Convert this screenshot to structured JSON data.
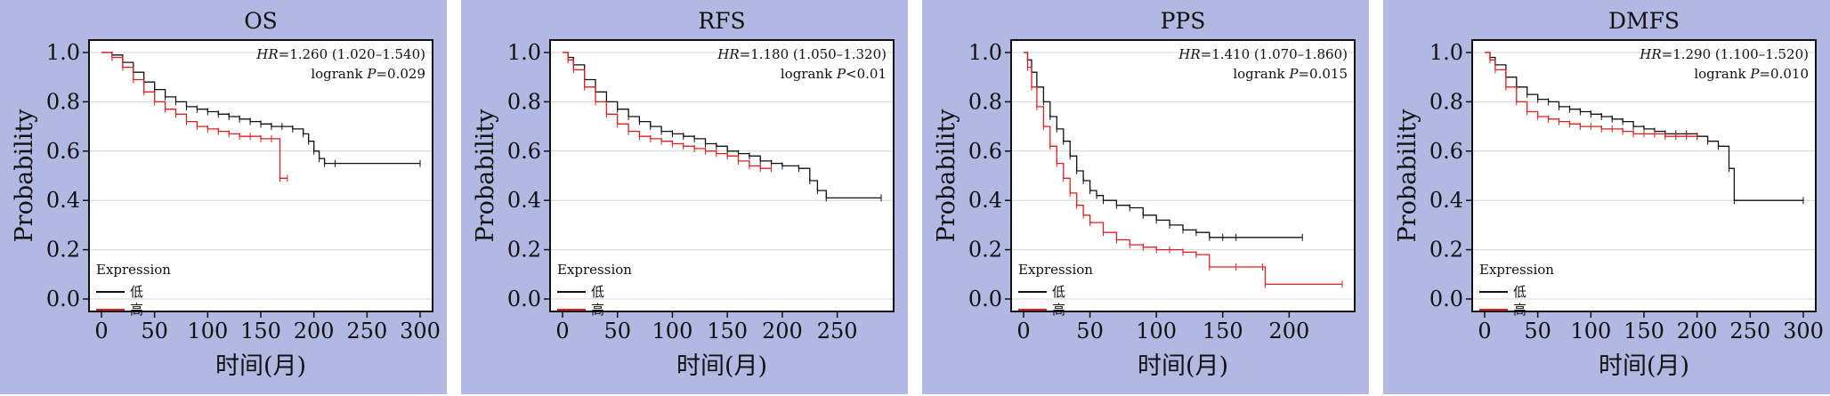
{
  "colors": {
    "background": "#b1b9e2",
    "low": "#111111",
    "high": "#e02020"
  },
  "chart_data": [
    {
      "type": "line",
      "title": "OS",
      "xlabel": "时间(月)",
      "ylabel": "Probability",
      "xlim": [
        0,
        300
      ],
      "ylim": [
        0,
        1
      ],
      "xticks": [
        "0",
        "50",
        "100",
        "150",
        "200",
        "250",
        "300"
      ],
      "yticks": [
        "0.0",
        "0.2",
        "0.4",
        "0.6",
        "0.8",
        "1.0"
      ],
      "grid": true,
      "legend": {
        "title": "Expression",
        "position": "bottom-left"
      },
      "stats": {
        "hr_label": "HR",
        "hr_value": "=1.260 (1.020–1.540)",
        "p_prefix": "logrank ",
        "p_label": "P",
        "p_value": "=0.029"
      },
      "series": [
        {
          "name": "低",
          "color": "#111111",
          "x": [
            0,
            10,
            20,
            30,
            40,
            50,
            60,
            70,
            80,
            90,
            100,
            110,
            120,
            130,
            140,
            150,
            160,
            170,
            180,
            190,
            195,
            200,
            205,
            210,
            220,
            300
          ],
          "y": [
            1.0,
            0.99,
            0.96,
            0.92,
            0.88,
            0.85,
            0.82,
            0.8,
            0.78,
            0.77,
            0.76,
            0.75,
            0.74,
            0.73,
            0.72,
            0.71,
            0.7,
            0.7,
            0.69,
            0.67,
            0.64,
            0.6,
            0.57,
            0.55,
            0.55,
            0.55
          ]
        },
        {
          "name": "高",
          "color": "#e02020",
          "x": [
            0,
            10,
            20,
            30,
            40,
            50,
            60,
            70,
            80,
            90,
            100,
            110,
            120,
            130,
            140,
            150,
            160,
            168,
            175
          ],
          "y": [
            1.0,
            0.98,
            0.94,
            0.89,
            0.84,
            0.8,
            0.77,
            0.75,
            0.72,
            0.7,
            0.69,
            0.68,
            0.67,
            0.66,
            0.66,
            0.65,
            0.65,
            0.49,
            0.49
          ]
        }
      ]
    },
    {
      "type": "line",
      "title": "RFS",
      "xlabel": "时间(月)",
      "ylabel": "Probability",
      "xlim": [
        0,
        290
      ],
      "ylim": [
        0,
        1
      ],
      "xticks": [
        "0",
        "50",
        "100",
        "150",
        "200",
        "250"
      ],
      "yticks": [
        "0.0",
        "0.2",
        "0.4",
        "0.6",
        "0.8",
        "1.0"
      ],
      "grid": true,
      "legend": {
        "title": "Expression",
        "position": "bottom-left"
      },
      "stats": {
        "hr_label": "HR",
        "hr_value": "=1.180 (1.050–1.320)",
        "p_prefix": "logrank ",
        "p_label": "P",
        "p_value": "<0.01"
      },
      "series": [
        {
          "name": "低",
          "color": "#111111",
          "x": [
            0,
            5,
            10,
            20,
            30,
            40,
            50,
            60,
            70,
            80,
            90,
            100,
            110,
            120,
            130,
            140,
            150,
            160,
            170,
            180,
            190,
            200,
            215,
            225,
            232,
            240,
            290
          ],
          "y": [
            1.0,
            0.98,
            0.95,
            0.89,
            0.84,
            0.8,
            0.77,
            0.74,
            0.72,
            0.7,
            0.68,
            0.67,
            0.66,
            0.65,
            0.63,
            0.62,
            0.6,
            0.59,
            0.58,
            0.56,
            0.55,
            0.54,
            0.53,
            0.48,
            0.44,
            0.41,
            0.41
          ]
        },
        {
          "name": "高",
          "color": "#e02020",
          "x": [
            0,
            5,
            10,
            20,
            30,
            40,
            50,
            60,
            70,
            80,
            90,
            100,
            110,
            120,
            130,
            140,
            150,
            160,
            170,
            180,
            190
          ],
          "y": [
            1.0,
            0.97,
            0.93,
            0.86,
            0.8,
            0.75,
            0.71,
            0.68,
            0.66,
            0.65,
            0.64,
            0.63,
            0.62,
            0.61,
            0.6,
            0.59,
            0.58,
            0.56,
            0.54,
            0.53,
            0.53
          ]
        }
      ]
    },
    {
      "type": "line",
      "title": "PPS",
      "xlabel": "时间(月)",
      "ylabel": "Probability",
      "xlim": [
        0,
        240
      ],
      "ylim": [
        0,
        1
      ],
      "xticks": [
        "0",
        "50",
        "100",
        "150",
        "200"
      ],
      "yticks": [
        "0.0",
        "0.2",
        "0.4",
        "0.6",
        "0.8",
        "1.0"
      ],
      "grid": true,
      "legend": {
        "title": "Expression",
        "position": "bottom-left"
      },
      "stats": {
        "hr_label": "HR",
        "hr_value": "=1.410 (1.070–1.860)",
        "p_prefix": "logrank ",
        "p_label": "P",
        "p_value": "=0.015"
      },
      "series": [
        {
          "name": "低",
          "color": "#111111",
          "x": [
            0,
            3,
            6,
            10,
            15,
            20,
            25,
            30,
            35,
            40,
            45,
            50,
            55,
            60,
            70,
            80,
            90,
            100,
            110,
            120,
            130,
            140,
            150,
            160,
            210
          ],
          "y": [
            1.0,
            0.97,
            0.92,
            0.86,
            0.8,
            0.74,
            0.69,
            0.64,
            0.58,
            0.52,
            0.48,
            0.44,
            0.42,
            0.4,
            0.38,
            0.37,
            0.34,
            0.32,
            0.3,
            0.28,
            0.27,
            0.25,
            0.25,
            0.25,
            0.25
          ]
        },
        {
          "name": "高",
          "color": "#e02020",
          "x": [
            0,
            3,
            6,
            10,
            15,
            20,
            25,
            30,
            35,
            40,
            45,
            50,
            60,
            70,
            80,
            90,
            100,
            110,
            120,
            130,
            140,
            160,
            180,
            182,
            240
          ],
          "y": [
            1.0,
            0.94,
            0.86,
            0.78,
            0.7,
            0.62,
            0.55,
            0.49,
            0.43,
            0.38,
            0.34,
            0.31,
            0.27,
            0.24,
            0.22,
            0.21,
            0.2,
            0.2,
            0.19,
            0.18,
            0.13,
            0.13,
            0.13,
            0.06,
            0.06
          ]
        }
      ]
    },
    {
      "type": "line",
      "title": "DMFS",
      "xlabel": "时间(月)",
      "ylabel": "Probability",
      "xlim": [
        0,
        300
      ],
      "ylim": [
        0,
        1
      ],
      "xticks": [
        "0",
        "50",
        "100",
        "150",
        "200",
        "250",
        "300"
      ],
      "yticks": [
        "0.0",
        "0.2",
        "0.4",
        "0.6",
        "0.8",
        "1.0"
      ],
      "grid": true,
      "legend": {
        "title": "Expression",
        "position": "bottom-left"
      },
      "stats": {
        "hr_label": "HR",
        "hr_value": "=1.290 (1.100–1.520)",
        "p_prefix": "logrank ",
        "p_label": "P",
        "p_value": "=0.010"
      },
      "series": [
        {
          "name": "低",
          "color": "#111111",
          "x": [
            0,
            5,
            10,
            20,
            30,
            40,
            50,
            60,
            70,
            80,
            90,
            100,
            110,
            120,
            130,
            140,
            150,
            160,
            170,
            180,
            190,
            200,
            210,
            220,
            230,
            235,
            300
          ],
          "y": [
            1.0,
            0.98,
            0.95,
            0.9,
            0.86,
            0.83,
            0.81,
            0.8,
            0.78,
            0.77,
            0.76,
            0.75,
            0.74,
            0.73,
            0.72,
            0.7,
            0.69,
            0.68,
            0.67,
            0.67,
            0.67,
            0.66,
            0.64,
            0.62,
            0.53,
            0.4,
            0.4
          ]
        },
        {
          "name": "高",
          "color": "#e02020",
          "x": [
            0,
            5,
            10,
            20,
            30,
            40,
            50,
            60,
            70,
            80,
            90,
            100,
            110,
            120,
            130,
            140,
            150,
            160,
            170,
            180,
            190,
            200
          ],
          "y": [
            1.0,
            0.97,
            0.93,
            0.86,
            0.8,
            0.76,
            0.74,
            0.73,
            0.72,
            0.71,
            0.7,
            0.7,
            0.69,
            0.69,
            0.68,
            0.67,
            0.67,
            0.67,
            0.66,
            0.66,
            0.66,
            0.66
          ]
        }
      ]
    }
  ]
}
